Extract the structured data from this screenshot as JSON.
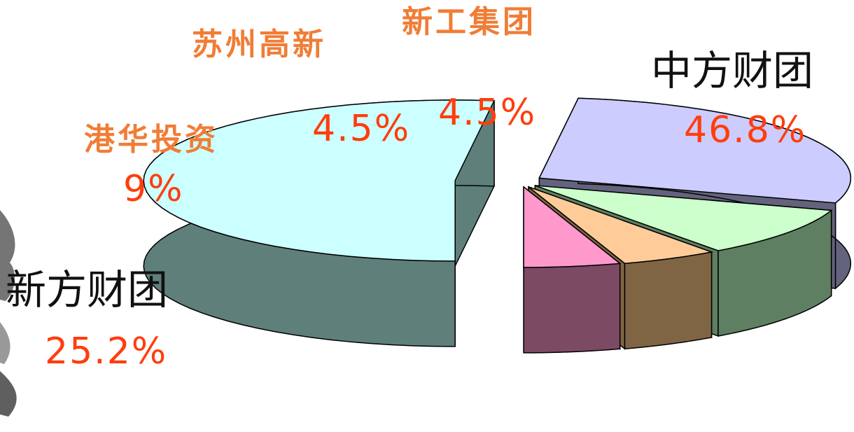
{
  "chart_data": {
    "type": "pie",
    "style": "3d-exploded",
    "categories": [
      "中方财团",
      "新方财团",
      "港华投资",
      "苏州高新",
      "新工集团"
    ],
    "labels": [
      "中方财团",
      "新方财团",
      "港华投资",
      "苏州高新",
      "新工集团"
    ],
    "values": [
      46.8,
      25.2,
      9,
      4.5,
      4.5
    ],
    "value_labels": [
      "46.8%",
      "25.2%",
      "9%",
      "4.5%",
      "4.5%"
    ],
    "colors": {
      "top": [
        "#ccffff",
        "#ccccff",
        "#ccffcc",
        "#ffcc99",
        "#ff99cc"
      ],
      "side": [
        "#5f7f7b",
        "#63637e",
        "#5e7f61",
        "#7f6544",
        "#7d4a63"
      ]
    },
    "label_colors": {
      "name_dark": "#111111",
      "name_light": "#f07d36",
      "percent": "#ff3d0d"
    }
  }
}
